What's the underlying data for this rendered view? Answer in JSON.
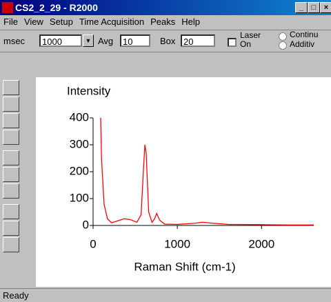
{
  "window": {
    "title": "CS2_2_29 - R2000"
  },
  "menu": [
    "File",
    "View",
    "Setup",
    "Time Acquisition",
    "Peaks",
    "Help"
  ],
  "toolbar": {
    "msec_label": "msec",
    "msec_value": "1000",
    "avg_label": "Avg",
    "avg_value": "10",
    "box_label": "Box",
    "box_value": "20",
    "laser_label_1": "Laser",
    "laser_label_2": "On",
    "radio_1": "Continu",
    "radio_2": "Additiv"
  },
  "status": "Ready",
  "chart_data": {
    "type": "line",
    "y_label": "Intensity",
    "x_label": "Raman Shift (cm-1)",
    "color": "#ff0000",
    "x": [
      90,
      100,
      130,
      170,
      220,
      300,
      370,
      440,
      520,
      570,
      600,
      615,
      630,
      660,
      700,
      730,
      755,
      790,
      850,
      1000,
      1200,
      1300,
      1400,
      1600,
      2000,
      2300,
      2620
    ],
    "values": [
      400,
      250,
      80,
      25,
      10,
      18,
      25,
      22,
      12,
      40,
      220,
      300,
      270,
      50,
      12,
      25,
      45,
      20,
      5,
      4,
      8,
      12,
      9,
      4,
      3,
      2,
      2
    ],
    "xlim": [
      0,
      2620
    ],
    "ylim": [
      0,
      400
    ],
    "xticks": [
      0,
      1000,
      2000
    ],
    "yticks": [
      0,
      100,
      200,
      300,
      400
    ]
  }
}
